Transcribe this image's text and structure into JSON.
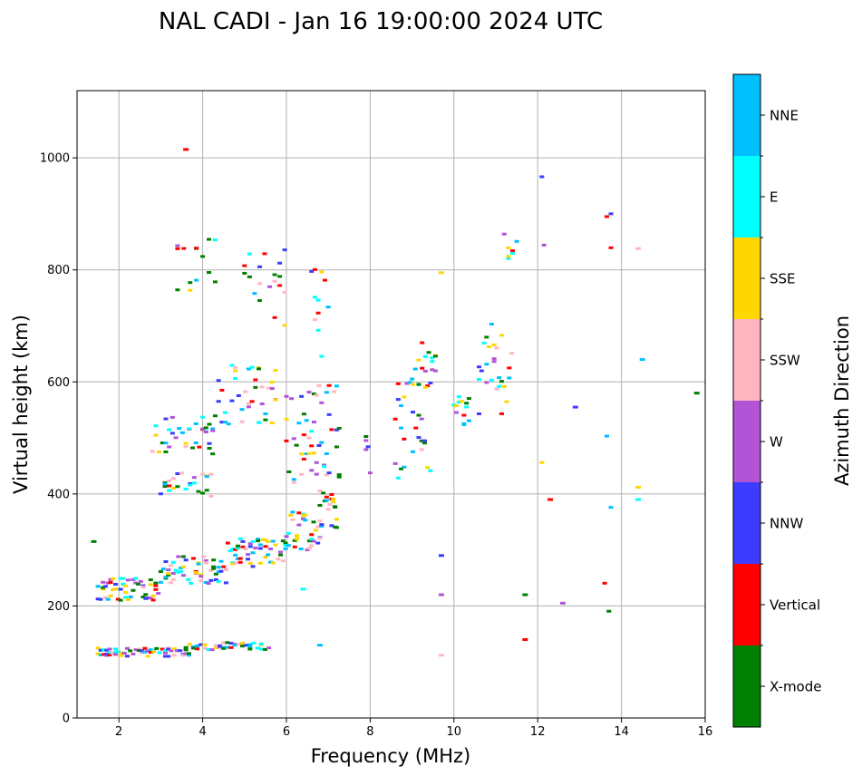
{
  "chart_data": {
    "type": "scatter",
    "title": "NAL CADI - Jan 16 19:00:00 2024 UTC",
    "xlabel": "Frequency (MHz)",
    "ylabel": "Virtual height (km)",
    "xlim": [
      1,
      16
    ],
    "ylim": [
      0,
      1120
    ],
    "xticks": [
      2,
      4,
      6,
      8,
      10,
      12,
      14,
      16
    ],
    "yticks": [
      0,
      200,
      400,
      600,
      800,
      1000
    ],
    "grid": true,
    "colorbar": {
      "label": "Azimuth Direction",
      "categories": [
        {
          "name": "X-mode",
          "color": "#008000"
        },
        {
          "name": "Vertical",
          "color": "#ff0000"
        },
        {
          "name": "NNW",
          "color": "#3c3cff"
        },
        {
          "name": "W",
          "color": "#b254d6"
        },
        {
          "name": "SSW",
          "color": "#ffb6c1"
        },
        {
          "name": "SSE",
          "color": "#ffd700"
        },
        {
          "name": "E",
          "color": "#00ffff"
        },
        {
          "name": "NNE",
          "color": "#00bfff"
        }
      ]
    },
    "bands": [
      {
        "f0": 1.5,
        "f1": 3.7,
        "h0": 110,
        "h1": 125,
        "step": 0.07
      },
      {
        "f0": 3.6,
        "f1": 5.6,
        "h0": 120,
        "h1": 135,
        "step": 0.09
      },
      {
        "f0": 1.5,
        "f1": 3.0,
        "h0": 210,
        "h1": 250,
        "step": 0.06
      },
      {
        "f0": 3.0,
        "f1": 4.6,
        "h0": 240,
        "h1": 290,
        "step": 0.06
      },
      {
        "f0": 4.6,
        "f1": 6.0,
        "h0": 270,
        "h1": 320,
        "step": 0.06
      },
      {
        "f0": 6.0,
        "f1": 6.8,
        "h0": 300,
        "h1": 370,
        "step": 0.05
      },
      {
        "f0": 6.8,
        "f1": 7.2,
        "h0": 340,
        "h1": 410,
        "step": 0.04
      },
      {
        "f0": 2.8,
        "f1": 4.3,
        "h0": 470,
        "h1": 540,
        "step": 0.08
      },
      {
        "f0": 4.3,
        "f1": 5.8,
        "h0": 520,
        "h1": 630,
        "step": 0.08
      },
      {
        "f0": 3.0,
        "f1": 4.2,
        "h0": 390,
        "h1": 440,
        "step": 0.1
      },
      {
        "f0": 6.0,
        "f1": 7.3,
        "h0": 420,
        "h1": 600,
        "step": 0.06
      },
      {
        "f0": 5.0,
        "f1": 6.0,
        "h0": 700,
        "h1": 840,
        "step": 0.12
      },
      {
        "f0": 6.6,
        "f1": 7.0,
        "h0": 640,
        "h1": 810,
        "step": 0.08
      },
      {
        "f0": 3.4,
        "f1": 4.4,
        "h0": 760,
        "h1": 860,
        "step": 0.15
      },
      {
        "f0": 7.9,
        "f1": 8.0,
        "h0": 400,
        "h1": 580,
        "step": 0.05
      },
      {
        "f0": 8.6,
        "f1": 9.5,
        "h0": 420,
        "h1": 600,
        "step": 0.07
      },
      {
        "f0": 9.0,
        "f1": 9.6,
        "h0": 590,
        "h1": 670,
        "step": 0.08
      },
      {
        "f0": 10.0,
        "f1": 10.4,
        "h0": 510,
        "h1": 580,
        "step": 0.06
      },
      {
        "f0": 10.6,
        "f1": 11.4,
        "h0": 540,
        "h1": 720,
        "step": 0.06
      },
      {
        "f0": 11.2,
        "f1": 11.5,
        "h0": 820,
        "h1": 875,
        "step": 0.1
      },
      {
        "f0": 12.1,
        "f1": 12.2,
        "h0": 100,
        "h1": 1010,
        "step": 0.05
      },
      {
        "f0": 13.6,
        "f1": 13.8,
        "h0": 90,
        "h1": 1020,
        "step": 0.05
      }
    ],
    "isolated_points": [
      {
        "f": 1.4,
        "h": 315
      },
      {
        "f": 3.6,
        "h": 1015
      },
      {
        "f": 9.7,
        "h": 290
      },
      {
        "f": 9.7,
        "h": 220
      },
      {
        "f": 9.7,
        "h": 112
      },
      {
        "f": 9.7,
        "h": 795
      },
      {
        "f": 6.4,
        "h": 230
      },
      {
        "f": 6.8,
        "h": 130
      },
      {
        "f": 11.7,
        "h": 220
      },
      {
        "f": 11.7,
        "h": 140
      },
      {
        "f": 12.9,
        "h": 555
      },
      {
        "f": 12.6,
        "h": 205
      },
      {
        "f": 14.4,
        "h": 838
      },
      {
        "f": 14.4,
        "h": 412
      },
      {
        "f": 14.4,
        "h": 390
      },
      {
        "f": 14.5,
        "h": 640
      },
      {
        "f": 15.8,
        "h": 580
      },
      {
        "f": 12.3,
        "h": 390
      }
    ]
  }
}
